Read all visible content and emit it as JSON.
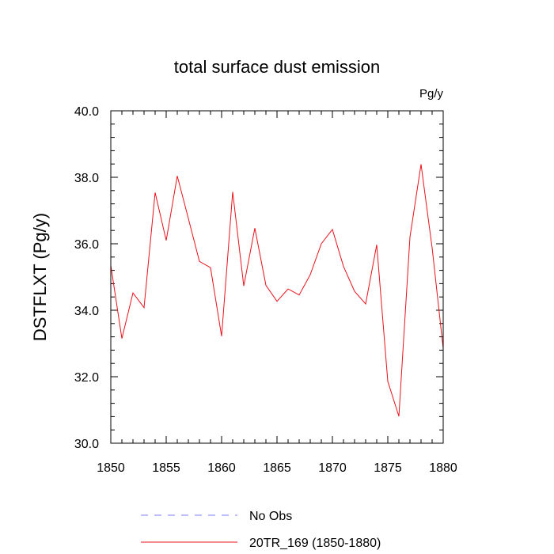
{
  "chart_data": {
    "type": "line",
    "title": "total surface dust emission",
    "units_label": "Pg/y",
    "xlabel": "",
    "ylabel": "DSTFLXT  (Pg/y)",
    "xlim": [
      1850,
      1880
    ],
    "ylim": [
      30.0,
      40.0
    ],
    "x_major_ticks": [
      1850,
      1855,
      1860,
      1865,
      1870,
      1875,
      1880
    ],
    "x_tick_labels": [
      "1850",
      "1855",
      "1860",
      "1865",
      "1870",
      "1875",
      "1880"
    ],
    "x_minor_step": 1,
    "y_major_ticks": [
      30.0,
      32.0,
      34.0,
      36.0,
      38.0,
      40.0
    ],
    "y_tick_labels": [
      "30.0",
      "32.0",
      "34.0",
      "36.0",
      "38.0",
      "40.0"
    ],
    "y_minor_step": 0.4,
    "grid": false,
    "series": [
      {
        "name": "20TR_169 (1850-1880)",
        "color": "#e8111b",
        "dash": "solid",
        "x": [
          1850,
          1851,
          1852,
          1853,
          1854,
          1855,
          1856,
          1857,
          1858,
          1859,
          1860,
          1861,
          1862,
          1863,
          1864,
          1865,
          1866,
          1867,
          1868,
          1869,
          1870,
          1871,
          1872,
          1873,
          1874,
          1875,
          1876,
          1877,
          1878,
          1879,
          1880
        ],
        "values": [
          35.35,
          33.15,
          34.52,
          34.08,
          37.54,
          36.1,
          38.04,
          36.76,
          35.47,
          35.28,
          33.22,
          37.56,
          34.73,
          36.47,
          34.75,
          34.27,
          34.64,
          34.46,
          35.07,
          36.0,
          36.43,
          35.32,
          34.57,
          34.19,
          35.97,
          31.86,
          30.81,
          36.2,
          38.39,
          35.88,
          32.85
        ]
      }
    ],
    "legend": {
      "position": "bottom",
      "entries": [
        {
          "label": "No Obs",
          "color": "#7d7dff",
          "dash": "dashed"
        },
        {
          "label": "20TR_169 (1850-1880)",
          "color": "#e8111b",
          "dash": "solid"
        }
      ]
    }
  }
}
